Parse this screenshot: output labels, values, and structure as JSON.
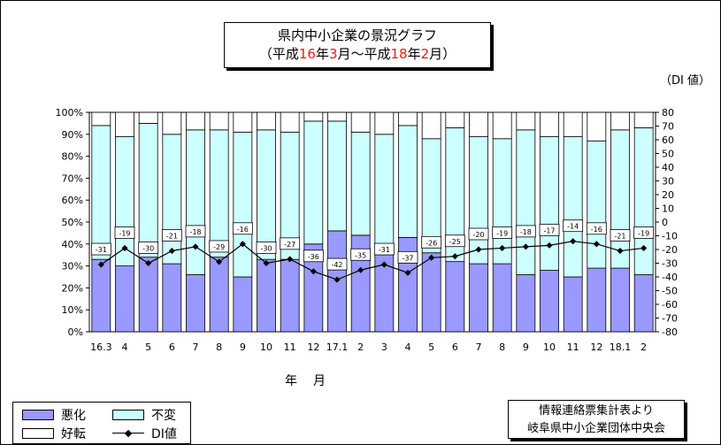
{
  "title": {
    "line1": "県内中小企業の景況グラフ",
    "line2": {
      "open": "（平成",
      "year1": "16",
      "mid1": "年",
      "month1": "3",
      "mid2": "月～平成",
      "year2": "18",
      "mid3": "年",
      "month2": "2",
      "close": "月）"
    }
  },
  "unit_label": "（DI 値）",
  "x_axis_title": "年　月",
  "legend": {
    "worse": "悪化",
    "same": "不変",
    "better": "好転",
    "di": "DI値"
  },
  "source": {
    "line1": "情報連絡票集計表より",
    "line2": "岐阜県中小企業団体中央会"
  },
  "colors": {
    "worse": "#9999ff",
    "same": "#ccffff",
    "better": "#ffffff",
    "di": "#000000",
    "accent": "#e81c1c"
  },
  "chart_data": {
    "type": "bar",
    "stacked": true,
    "categories": [
      "16.3",
      "4",
      "5",
      "6",
      "7",
      "8",
      "9",
      "10",
      "11",
      "12",
      "17.1",
      "2",
      "3",
      "4",
      "5",
      "6",
      "7",
      "8",
      "9",
      "10",
      "11",
      "12",
      "18.1",
      "2"
    ],
    "series": [
      {
        "name": "悪化",
        "values": [
          33,
          30,
          34,
          31,
          26,
          34,
          25,
          33,
          33,
          40,
          46,
          44,
          40,
          43,
          36,
          32,
          31,
          31,
          26,
          28,
          25,
          29,
          29,
          26
        ]
      },
      {
        "name": "不変",
        "values": [
          61,
          59,
          61,
          59,
          66,
          58,
          66,
          59,
          58,
          56,
          50,
          47,
          50,
          51,
          52,
          61,
          58,
          57,
          66,
          61,
          64,
          58,
          63,
          67
        ]
      },
      {
        "name": "好転",
        "values": [
          6,
          11,
          5,
          10,
          8,
          8,
          9,
          8,
          9,
          4,
          4,
          9,
          10,
          6,
          12,
          7,
          11,
          12,
          8,
          11,
          11,
          13,
          8,
          7
        ]
      },
      {
        "name": "DI値",
        "axis": "right",
        "values": [
          -31,
          -19,
          -30,
          -21,
          -18,
          -29,
          -16,
          -30,
          -27,
          -36,
          -42,
          -35,
          -31,
          -37,
          -26,
          -25,
          -20,
          -19,
          -18,
          -17,
          -14,
          -16,
          -21,
          -19
        ]
      }
    ],
    "left_axis": {
      "ticks": [
        "0%",
        "10%",
        "20%",
        "30%",
        "40%",
        "50%",
        "60%",
        "70%",
        "80%",
        "90%",
        "100%"
      ],
      "ylim": [
        0,
        100
      ]
    },
    "right_axis": {
      "ticks": [
        "-80",
        "-70",
        "-60",
        "-50",
        "-40",
        "-30",
        "-20",
        "-10",
        "0",
        "10",
        "20",
        "30",
        "40",
        "50",
        "60",
        "70",
        "80"
      ],
      "ylim": [
        -80,
        80
      ]
    }
  }
}
